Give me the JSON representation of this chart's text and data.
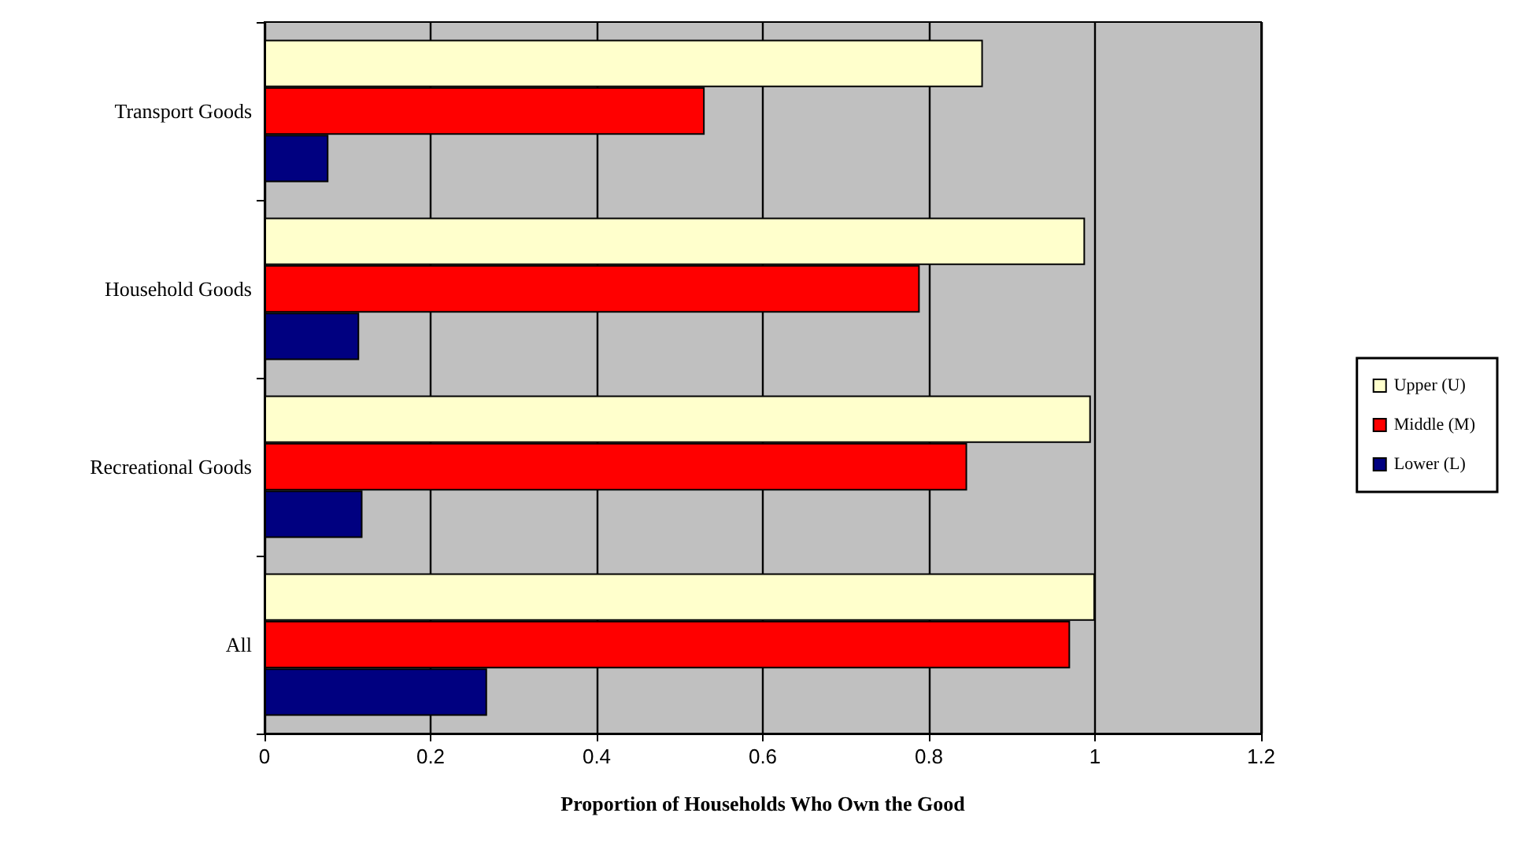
{
  "chart_data": {
    "type": "bar",
    "orientation": "horizontal",
    "xlabel": "Proportion of Households Who Own the Good",
    "categories": [
      "Transport Goods",
      "Household Goods",
      "Recreational Goods",
      "All"
    ],
    "series": [
      {
        "name": "Upper (U)",
        "color": "#ffffcc",
        "values": [
          0.865,
          0.988,
          0.995,
          1.0
        ]
      },
      {
        "name": "Middle (M)",
        "color": "#ff0000",
        "values": [
          0.53,
          0.789,
          0.846,
          0.97
        ]
      },
      {
        "name": "Lower (L)",
        "color": "#000080",
        "values": [
          0.077,
          0.114,
          0.118,
          0.268
        ]
      }
    ],
    "xlim": [
      0,
      1.2
    ],
    "xticks": [
      0,
      0.2,
      0.4,
      0.6,
      0.8,
      1,
      1.2
    ],
    "grid": "x",
    "legend": "right"
  }
}
